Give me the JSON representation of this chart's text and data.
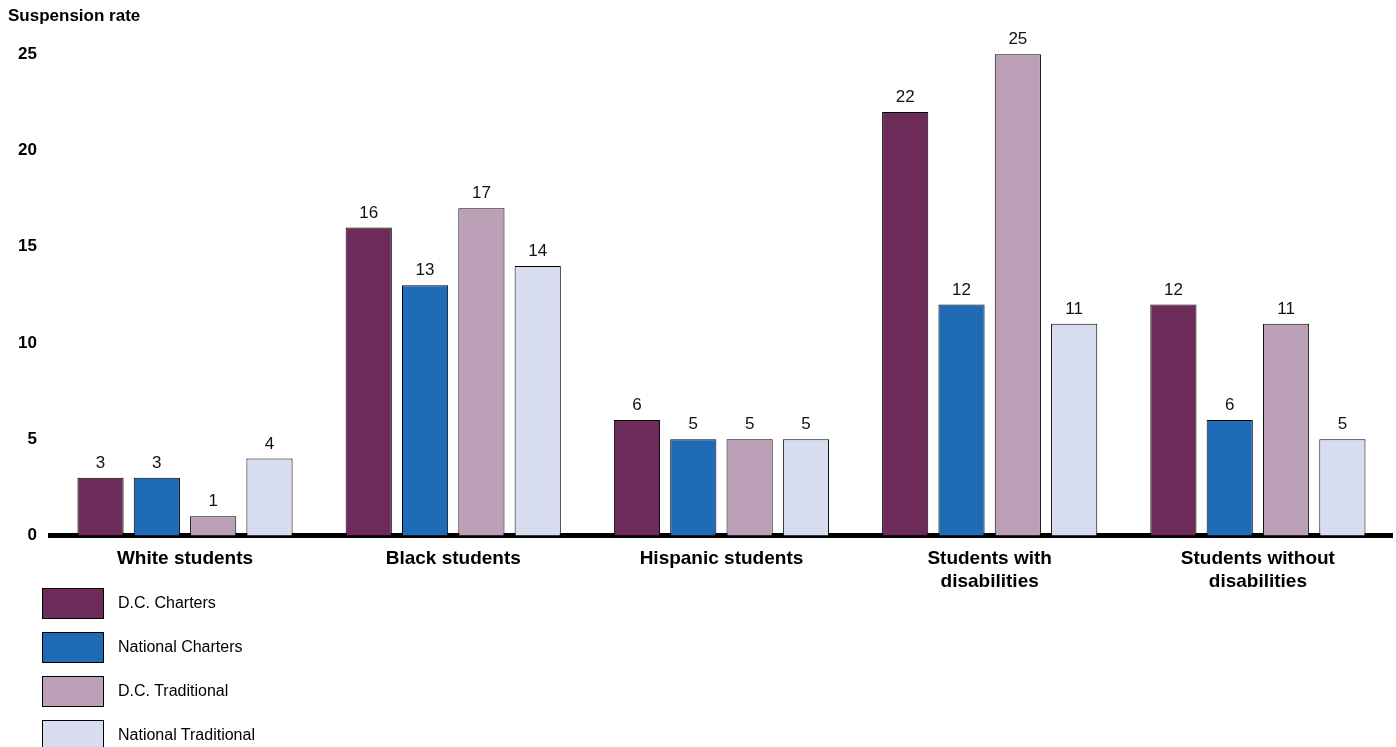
{
  "chart_data": {
    "type": "bar",
    "ylabel": "Suspension rate",
    "categories": [
      "White students",
      "Black students",
      "Hispanic students",
      "Students with disabilities",
      "Students without disabilities"
    ],
    "series": [
      {
        "name": "D.C. Charters",
        "color": "#6d2b5a",
        "values": [
          3,
          16,
          6,
          22,
          12
        ]
      },
      {
        "name": "National Charters",
        "color": "#1f6bb6",
        "values": [
          3,
          13,
          5,
          12,
          6
        ]
      },
      {
        "name": "D.C. Traditional",
        "color": "#bba0b7",
        "values": [
          1,
          17,
          5,
          25,
          11
        ]
      },
      {
        "name": "National Traditional",
        "color": "#d8dcef",
        "values": [
          4,
          14,
          5,
          11,
          5
        ]
      }
    ],
    "ylim": [
      0,
      25
    ],
    "yticks": [
      0,
      5,
      10,
      15,
      20,
      25
    ],
    "grid": false,
    "legend": "bottom left",
    "data_labels": true
  }
}
